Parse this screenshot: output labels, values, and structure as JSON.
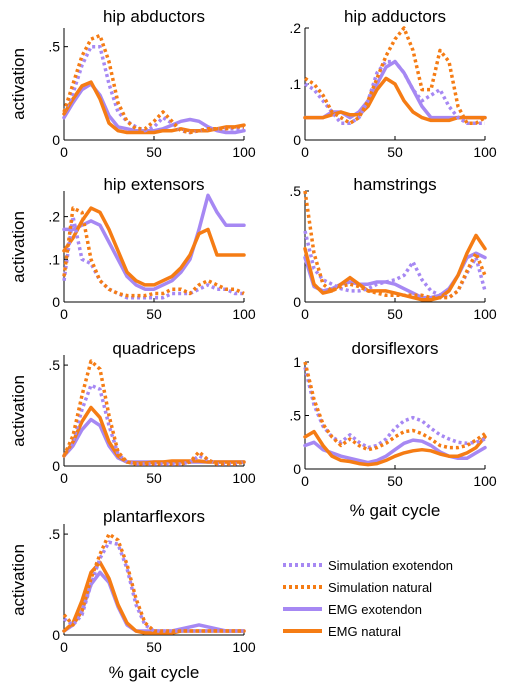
{
  "colors": {
    "exotendon": "#a688f3",
    "natural": "#f57c14"
  },
  "legend": [
    {
      "label": "Simulation exotendon",
      "color": "#a688f3",
      "style": "dotted"
    },
    {
      "label": "Simulation natural",
      "color": "#f57c14",
      "style": "dotted"
    },
    {
      "label": "EMG exotendon",
      "color": "#a688f3",
      "style": "solid"
    },
    {
      "label": "EMG natural",
      "color": "#f57c14",
      "style": "solid"
    }
  ],
  "chart_data": [
    {
      "type": "line",
      "title": "hip abductors",
      "xlabel": "",
      "ylabel": "activation",
      "xlim": [
        0,
        100
      ],
      "ylim": [
        0,
        0.6
      ],
      "xticks": [
        0,
        50,
        100
      ],
      "yticks": [
        0,
        0.5
      ],
      "grid": false,
      "x": [
        0,
        5,
        10,
        15,
        20,
        25,
        30,
        35,
        40,
        45,
        50,
        55,
        60,
        65,
        70,
        75,
        80,
        85,
        90,
        95,
        100
      ],
      "series": [
        {
          "name": "Simulation exotendon",
          "style": "dotted",
          "color": "#a688f3",
          "values": [
            0.15,
            0.25,
            0.4,
            0.5,
            0.5,
            0.3,
            0.15,
            0.1,
            0.07,
            0.05,
            0.07,
            0.12,
            0.09,
            0.05,
            0.04,
            0.05,
            0.06,
            0.06,
            0.06,
            0.06,
            0.06
          ]
        },
        {
          "name": "Simulation natural",
          "style": "dotted",
          "color": "#f57c14",
          "values": [
            0.15,
            0.3,
            0.45,
            0.54,
            0.56,
            0.42,
            0.2,
            0.1,
            0.06,
            0.06,
            0.1,
            0.15,
            0.1,
            0.05,
            0.04,
            0.05,
            0.06,
            0.06,
            0.06,
            0.07,
            0.07
          ]
        },
        {
          "name": "EMG exotendon",
          "style": "solid",
          "color": "#a688f3",
          "values": [
            0.12,
            0.2,
            0.27,
            0.3,
            0.24,
            0.13,
            0.07,
            0.06,
            0.05,
            0.05,
            0.05,
            0.06,
            0.08,
            0.1,
            0.11,
            0.1,
            0.07,
            0.05,
            0.04,
            0.04,
            0.05
          ]
        },
        {
          "name": "EMG natural",
          "style": "solid",
          "color": "#f57c14",
          "values": [
            0.14,
            0.22,
            0.29,
            0.31,
            0.22,
            0.09,
            0.05,
            0.04,
            0.04,
            0.04,
            0.04,
            0.05,
            0.05,
            0.06,
            0.05,
            0.05,
            0.05,
            0.06,
            0.07,
            0.07,
            0.08
          ]
        }
      ]
    },
    {
      "type": "line",
      "title": "hip adductors",
      "xlabel": "",
      "ylabel": "",
      "xlim": [
        0,
        100
      ],
      "ylim": [
        0,
        0.2
      ],
      "xticks": [
        0,
        50,
        100
      ],
      "yticks": [
        0,
        0.1,
        0.2
      ],
      "grid": false,
      "x": [
        0,
        5,
        10,
        15,
        20,
        25,
        30,
        35,
        40,
        45,
        50,
        55,
        60,
        65,
        70,
        75,
        80,
        85,
        90,
        95,
        100
      ],
      "series": [
        {
          "name": "Simulation exotendon",
          "style": "dotted",
          "color": "#a688f3",
          "values": [
            0.1,
            0.09,
            0.07,
            0.05,
            0.03,
            0.03,
            0.04,
            0.07,
            0.12,
            0.14,
            0.14,
            0.12,
            0.09,
            0.07,
            0.08,
            0.09,
            0.06,
            0.04,
            0.03,
            0.03,
            0.03
          ]
        },
        {
          "name": "Simulation natural",
          "style": "dotted",
          "color": "#f57c14",
          "values": [
            0.11,
            0.1,
            0.08,
            0.05,
            0.04,
            0.03,
            0.04,
            0.07,
            0.11,
            0.15,
            0.18,
            0.2,
            0.16,
            0.09,
            0.09,
            0.16,
            0.14,
            0.06,
            0.03,
            0.03,
            0.04
          ]
        },
        {
          "name": "EMG exotendon",
          "style": "solid",
          "color": "#a688f3",
          "values": [
            0.04,
            0.04,
            0.04,
            0.05,
            0.05,
            0.04,
            0.05,
            0.07,
            0.1,
            0.13,
            0.14,
            0.12,
            0.09,
            0.06,
            0.04,
            0.04,
            0.04,
            0.04,
            0.04,
            0.04,
            0.04
          ]
        },
        {
          "name": "EMG natural",
          "style": "solid",
          "color": "#f57c14",
          "values": [
            0.04,
            0.04,
            0.04,
            0.045,
            0.05,
            0.045,
            0.045,
            0.06,
            0.09,
            0.11,
            0.1,
            0.07,
            0.05,
            0.04,
            0.035,
            0.035,
            0.035,
            0.04,
            0.04,
            0.04,
            0.04
          ]
        }
      ]
    },
    {
      "type": "line",
      "title": "hip extensors",
      "xlabel": "",
      "ylabel": "activation",
      "xlim": [
        0,
        100
      ],
      "ylim": [
        0,
        0.26
      ],
      "xticks": [
        0,
        50,
        100
      ],
      "yticks": [
        0,
        0.1,
        0.2
      ],
      "grid": false,
      "x": [
        0,
        5,
        10,
        15,
        20,
        25,
        30,
        35,
        40,
        45,
        50,
        55,
        60,
        65,
        70,
        75,
        80,
        85,
        90,
        95,
        100
      ],
      "series": [
        {
          "name": "Simulation exotendon",
          "style": "dotted",
          "color": "#a688f3",
          "values": [
            0.05,
            0.2,
            0.1,
            0.09,
            0.05,
            0.03,
            0.02,
            0.01,
            0.01,
            0.01,
            0.01,
            0.01,
            0.02,
            0.02,
            0.02,
            0.03,
            0.04,
            0.03,
            0.03,
            0.02,
            0.02
          ]
        },
        {
          "name": "Simulation natural",
          "style": "dotted",
          "color": "#f57c14",
          "values": [
            0.06,
            0.22,
            0.21,
            0.1,
            0.05,
            0.03,
            0.02,
            0.015,
            0.015,
            0.015,
            0.02,
            0.02,
            0.03,
            0.03,
            0.02,
            0.04,
            0.05,
            0.04,
            0.03,
            0.03,
            0.02
          ]
        },
        {
          "name": "EMG exotendon",
          "style": "solid",
          "color": "#a688f3",
          "values": [
            0.17,
            0.17,
            0.18,
            0.19,
            0.18,
            0.14,
            0.1,
            0.06,
            0.04,
            0.03,
            0.03,
            0.04,
            0.05,
            0.07,
            0.1,
            0.17,
            0.25,
            0.21,
            0.18,
            0.18,
            0.18
          ]
        },
        {
          "name": "EMG natural",
          "style": "solid",
          "color": "#f57c14",
          "values": [
            0.12,
            0.15,
            0.19,
            0.22,
            0.21,
            0.17,
            0.12,
            0.07,
            0.05,
            0.04,
            0.04,
            0.05,
            0.06,
            0.08,
            0.11,
            0.16,
            0.17,
            0.11,
            0.11,
            0.11,
            0.11
          ]
        }
      ]
    },
    {
      "type": "line",
      "title": "hamstrings",
      "xlabel": "",
      "ylabel": "",
      "xlim": [
        0,
        100
      ],
      "ylim": [
        0,
        0.5
      ],
      "xticks": [
        0,
        50,
        100
      ],
      "yticks": [
        0,
        0.5
      ],
      "grid": false,
      "x": [
        0,
        5,
        10,
        15,
        20,
        25,
        30,
        35,
        40,
        45,
        50,
        55,
        60,
        65,
        70,
        75,
        80,
        85,
        90,
        95,
        100
      ],
      "series": [
        {
          "name": "Simulation exotendon",
          "style": "dotted",
          "color": "#a688f3",
          "values": [
            0.32,
            0.15,
            0.1,
            0.08,
            0.06,
            0.05,
            0.05,
            0.06,
            0.08,
            0.09,
            0.1,
            0.12,
            0.18,
            0.1,
            0.05,
            0.03,
            0.02,
            0.05,
            0.13,
            0.2,
            0.05
          ]
        },
        {
          "name": "Simulation natural",
          "style": "dotted",
          "color": "#f57c14",
          "values": [
            0.5,
            0.22,
            0.08,
            0.05,
            0.07,
            0.08,
            0.07,
            0.05,
            0.04,
            0.03,
            0.03,
            0.03,
            0.03,
            0.03,
            0.02,
            0.02,
            0.02,
            0.05,
            0.14,
            0.22,
            0.12
          ]
        },
        {
          "name": "EMG exotendon",
          "style": "solid",
          "color": "#a688f3",
          "values": [
            0.2,
            0.07,
            0.05,
            0.06,
            0.08,
            0.09,
            0.08,
            0.08,
            0.09,
            0.09,
            0.08,
            0.06,
            0.04,
            0.02,
            0.02,
            0.03,
            0.06,
            0.12,
            0.2,
            0.22,
            0.2
          ]
        },
        {
          "name": "EMG natural",
          "style": "solid",
          "color": "#f57c14",
          "values": [
            0.24,
            0.08,
            0.04,
            0.05,
            0.08,
            0.11,
            0.08,
            0.05,
            0.05,
            0.05,
            0.04,
            0.03,
            0.02,
            0.01,
            0.01,
            0.02,
            0.05,
            0.12,
            0.22,
            0.3,
            0.24
          ]
        }
      ]
    },
    {
      "type": "line",
      "title": "quadriceps",
      "xlabel": "",
      "ylabel": "activation",
      "xlim": [
        0,
        100
      ],
      "ylim": [
        0,
        0.55
      ],
      "xticks": [
        0,
        50,
        100
      ],
      "yticks": [
        0,
        0.5
      ],
      "grid": false,
      "x": [
        0,
        5,
        10,
        15,
        20,
        25,
        30,
        35,
        40,
        45,
        50,
        55,
        60,
        65,
        70,
        75,
        80,
        85,
        90,
        95,
        100
      ],
      "series": [
        {
          "name": "Simulation exotendon",
          "style": "dotted",
          "color": "#a688f3",
          "values": [
            0.05,
            0.12,
            0.28,
            0.4,
            0.38,
            0.2,
            0.06,
            0.02,
            0.01,
            0.01,
            0.01,
            0.01,
            0.01,
            0.01,
            0.02,
            0.05,
            0.03,
            0.01,
            0.01,
            0.01,
            0.02
          ]
        },
        {
          "name": "Simulation natural",
          "style": "dotted",
          "color": "#f57c14",
          "values": [
            0.05,
            0.15,
            0.35,
            0.52,
            0.48,
            0.25,
            0.07,
            0.02,
            0.01,
            0.01,
            0.01,
            0.01,
            0.01,
            0.01,
            0.02,
            0.07,
            0.03,
            0.01,
            0.01,
            0.01,
            0.02
          ]
        },
        {
          "name": "EMG exotendon",
          "style": "solid",
          "color": "#a688f3",
          "values": [
            0.05,
            0.1,
            0.18,
            0.23,
            0.2,
            0.1,
            0.04,
            0.02,
            0.02,
            0.02,
            0.02,
            0.02,
            0.02,
            0.02,
            0.02,
            0.02,
            0.02,
            0.02,
            0.02,
            0.02,
            0.02
          ]
        },
        {
          "name": "EMG natural",
          "style": "solid",
          "color": "#f57c14",
          "values": [
            0.05,
            0.12,
            0.22,
            0.29,
            0.24,
            0.12,
            0.05,
            0.02,
            0.015,
            0.015,
            0.02,
            0.02,
            0.025,
            0.025,
            0.025,
            0.025,
            0.02,
            0.02,
            0.02,
            0.02,
            0.02
          ]
        }
      ]
    },
    {
      "type": "line",
      "title": "dorsiflexors",
      "xlabel": "% gait cycle",
      "ylabel": "",
      "xlim": [
        0,
        100
      ],
      "ylim": [
        0,
        1
      ],
      "xticks": [
        0,
        50,
        100
      ],
      "yticks": [
        0,
        0.5,
        1
      ],
      "grid": false,
      "x": [
        0,
        5,
        10,
        15,
        20,
        25,
        30,
        35,
        40,
        45,
        50,
        55,
        60,
        65,
        70,
        75,
        80,
        85,
        90,
        95,
        100
      ],
      "series": [
        {
          "name": "Simulation exotendon",
          "style": "dotted",
          "color": "#a688f3",
          "values": [
            0.95,
            0.6,
            0.4,
            0.3,
            0.25,
            0.32,
            0.25,
            0.2,
            0.22,
            0.28,
            0.38,
            0.45,
            0.48,
            0.45,
            0.38,
            0.32,
            0.28,
            0.25,
            0.24,
            0.25,
            0.28
          ]
        },
        {
          "name": "Simulation natural",
          "style": "dotted",
          "color": "#f57c14",
          "values": [
            1.0,
            0.65,
            0.42,
            0.3,
            0.22,
            0.28,
            0.22,
            0.18,
            0.2,
            0.24,
            0.3,
            0.35,
            0.36,
            0.33,
            0.28,
            0.22,
            0.2,
            0.2,
            0.22,
            0.27,
            0.33
          ]
        },
        {
          "name": "EMG exotendon",
          "style": "solid",
          "color": "#a688f3",
          "values": [
            0.22,
            0.25,
            0.18,
            0.15,
            0.12,
            0.1,
            0.08,
            0.06,
            0.08,
            0.12,
            0.18,
            0.24,
            0.27,
            0.26,
            0.22,
            0.16,
            0.12,
            0.1,
            0.1,
            0.15,
            0.2
          ]
        },
        {
          "name": "EMG natural",
          "style": "solid",
          "color": "#f57c14",
          "values": [
            0.3,
            0.35,
            0.22,
            0.12,
            0.08,
            0.07,
            0.05,
            0.04,
            0.05,
            0.08,
            0.12,
            0.15,
            0.17,
            0.18,
            0.17,
            0.14,
            0.12,
            0.12,
            0.15,
            0.2,
            0.3
          ]
        }
      ]
    },
    {
      "type": "line",
      "title": "plantarflexors",
      "xlabel": "% gait cycle",
      "ylabel": "activation",
      "xlim": [
        0,
        100
      ],
      "ylim": [
        0,
        0.55
      ],
      "xticks": [
        0,
        50,
        100
      ],
      "yticks": [
        0,
        0.5
      ],
      "grid": false,
      "x": [
        0,
        5,
        10,
        15,
        20,
        25,
        30,
        35,
        40,
        45,
        50,
        55,
        60,
        65,
        70,
        75,
        80,
        85,
        90,
        95,
        100
      ],
      "series": [
        {
          "name": "Simulation exotendon",
          "style": "dotted",
          "color": "#a688f3",
          "values": [
            0.08,
            0.05,
            0.1,
            0.25,
            0.38,
            0.46,
            0.45,
            0.33,
            0.15,
            0.05,
            0.02,
            0.02,
            0.02,
            0.02,
            0.02,
            0.02,
            0.02,
            0.02,
            0.02,
            0.02,
            0.02
          ]
        },
        {
          "name": "Simulation natural",
          "style": "dotted",
          "color": "#f57c14",
          "values": [
            0.1,
            0.05,
            0.12,
            0.28,
            0.4,
            0.5,
            0.47,
            0.35,
            0.18,
            0.06,
            0.02,
            0.02,
            0.02,
            0.02,
            0.02,
            0.02,
            0.02,
            0.02,
            0.02,
            0.02,
            0.02
          ]
        },
        {
          "name": "EMG exotendon",
          "style": "solid",
          "color": "#a688f3",
          "values": [
            0.02,
            0.05,
            0.12,
            0.25,
            0.31,
            0.26,
            0.14,
            0.05,
            0.02,
            0.02,
            0.02,
            0.02,
            0.02,
            0.03,
            0.04,
            0.05,
            0.04,
            0.03,
            0.02,
            0.02,
            0.02
          ]
        },
        {
          "name": "EMG natural",
          "style": "solid",
          "color": "#f57c14",
          "values": [
            0.02,
            0.06,
            0.17,
            0.31,
            0.36,
            0.28,
            0.15,
            0.06,
            0.02,
            0.01,
            0.01,
            0.01,
            0.01,
            0.02,
            0.02,
            0.02,
            0.02,
            0.02,
            0.02,
            0.02,
            0.02
          ]
        }
      ]
    }
  ]
}
